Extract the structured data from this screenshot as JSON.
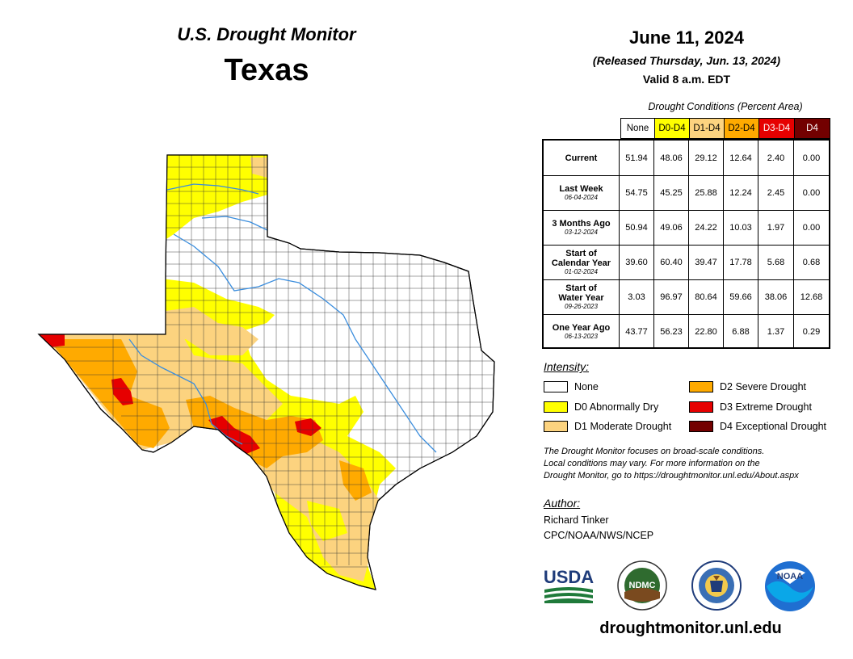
{
  "header": {
    "title": "U.S. Drought Monitor",
    "state": "Texas",
    "date": "June 11, 2024",
    "released": "(Released Thursday, Jun. 13, 2024)",
    "valid": "Valid 8 a.m. EDT"
  },
  "table": {
    "caption": "Drought Conditions (Percent Area)",
    "columns": [
      "None",
      "D0-D4",
      "D1-D4",
      "D2-D4",
      "D3-D4",
      "D4"
    ],
    "column_colors": [
      "#ffffff",
      "#ffff00",
      "#fcd37f",
      "#ffaa00",
      "#e60000",
      "#730000"
    ],
    "rows": [
      {
        "label": "Current",
        "date": "",
        "values": [
          "51.94",
          "48.06",
          "29.12",
          "12.64",
          "2.40",
          "0.00"
        ]
      },
      {
        "label": "Last Week",
        "date": "06-04-2024",
        "values": [
          "54.75",
          "45.25",
          "25.88",
          "12.24",
          "2.45",
          "0.00"
        ]
      },
      {
        "label": "3 Months Ago",
        "date": "03-12-2024",
        "values": [
          "50.94",
          "49.06",
          "24.22",
          "10.03",
          "1.97",
          "0.00"
        ]
      },
      {
        "label": "Start of Calendar Year",
        "date": "01-02-2024",
        "values": [
          "39.60",
          "60.40",
          "39.47",
          "17.78",
          "5.68",
          "0.68"
        ]
      },
      {
        "label": "Start of Water Year",
        "date": "09-26-2023",
        "values": [
          "3.03",
          "96.97",
          "80.64",
          "59.66",
          "38.06",
          "12.68"
        ]
      },
      {
        "label": "One Year Ago",
        "date": "06-13-2023",
        "values": [
          "43.77",
          "56.23",
          "22.80",
          "6.88",
          "1.37",
          "0.29"
        ]
      }
    ]
  },
  "legend": {
    "title": "Intensity:",
    "items": [
      {
        "label": "None",
        "color": "#ffffff"
      },
      {
        "label": "D0 Abnormally Dry",
        "color": "#ffff00"
      },
      {
        "label": "D1 Moderate Drought",
        "color": "#fcd37f"
      },
      {
        "label": "D2 Severe Drought",
        "color": "#ffaa00"
      },
      {
        "label": "D3 Extreme Drought",
        "color": "#e60000"
      },
      {
        "label": "D4 Exceptional Drought",
        "color": "#730000"
      }
    ]
  },
  "disclaimer": {
    "line1": "The Drought Monitor focuses on broad-scale conditions.",
    "line2": "Local conditions may vary. For more information on the",
    "line3": "Drought Monitor, go to https://droughtmonitor.unl.edu/About.aspx"
  },
  "author": {
    "title": "Author:",
    "name": "Richard Tinker",
    "org": "CPC/NOAA/NWS/NCEP"
  },
  "logos": {
    "usda": "USDA",
    "ndmc": "NDMC",
    "noaa": "NOAA"
  },
  "website": "droughtmonitor.unl.edu"
}
